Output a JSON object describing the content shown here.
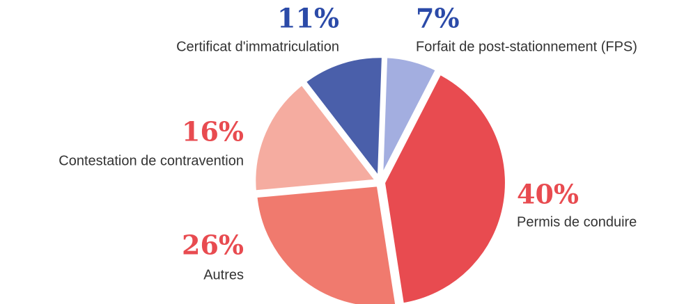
{
  "chart_data": {
    "type": "pie",
    "categories": [
      "Forfait de post-stationnement (FPS)",
      "Permis de conduire",
      "Autres",
      "Contestation de contravention",
      "Certificat d'immatriculation"
    ],
    "values": [
      7,
      40,
      26,
      16,
      11
    ],
    "value_labels": [
      "7%",
      "40%",
      "26%",
      "16%",
      "11%"
    ],
    "colors": [
      "#a3aee0",
      "#e84b50",
      "#f07a6e",
      "#f5aca0",
      "#4a5faa"
    ],
    "label_colors": [
      "#2b4aa8",
      "#e84b50",
      "#e84b50",
      "#e84b50",
      "#2b4aa8"
    ]
  }
}
